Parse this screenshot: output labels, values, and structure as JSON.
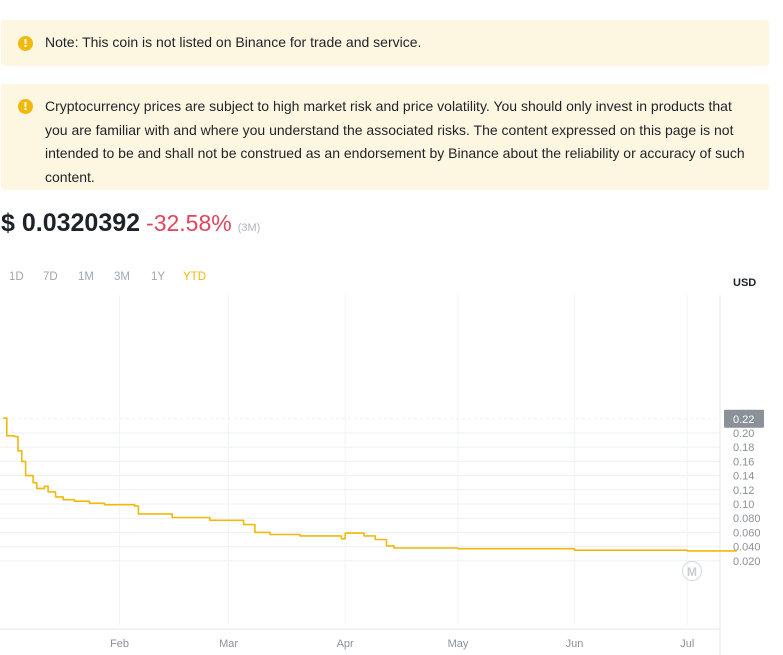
{
  "notices": [
    {
      "text": "Note: This coin is not listed on Binance for trade and service."
    },
    {
      "text": "Cryptocurrency prices are subject to high market risk and price volatility. You should only invest in products that you are familiar with and where you understand the associated risks. The content expressed on this page is not intended to be and shall not be construed as an endorsement by Binance about the reliability or accuracy of such content."
    }
  ],
  "warning_icon": "!",
  "price": {
    "value": "$ 0.0320392",
    "change": "-32.58%",
    "period": "(3M)"
  },
  "ranges": [
    "1D",
    "7D",
    "1M",
    "3M",
    "1Y",
    "YTD"
  ],
  "active_range": "YTD",
  "currency": "USD",
  "colors": {
    "line": "#f0b90b",
    "negative": "#e2445c",
    "notice_bg": "#fdf6e0",
    "active_tab": "#f0b90b"
  },
  "chart_data": {
    "type": "line",
    "title": "",
    "xlabel": "",
    "ylabel": "",
    "ylim": [
      0.0,
      0.226
    ],
    "x_labels": [
      "Feb",
      "Mar",
      "Apr",
      "May",
      "Jun",
      "Jul"
    ],
    "x_label_dates": [
      "2024-02-01",
      "2024-03-01",
      "2024-04-01",
      "2024-05-01",
      "2024-06-01",
      "2024-07-01"
    ],
    "y_ticks": [
      "0.22",
      "0.20",
      "0.18",
      "0.16",
      "0.14",
      "0.12",
      "0.10",
      "0.080",
      "0.060",
      "0.040",
      "0.020"
    ],
    "y_tick_values": [
      0.22,
      0.2,
      0.18,
      0.16,
      0.14,
      0.12,
      0.1,
      0.08,
      0.06,
      0.04,
      0.02
    ],
    "highlighted_tick": "0.22",
    "grid": true,
    "series": [
      {
        "x": [
          "2024-01-01",
          "2024-01-02",
          "2024-01-04",
          "2024-01-05",
          "2024-01-06",
          "2024-01-07",
          "2024-01-09",
          "2024-01-10",
          "2024-01-12",
          "2024-01-13",
          "2024-01-15",
          "2024-01-17",
          "2024-01-20",
          "2024-01-24",
          "2024-01-28",
          "2024-02-05",
          "2024-02-06",
          "2024-02-15",
          "2024-02-25",
          "2024-03-05",
          "2024-03-08",
          "2024-03-12",
          "2024-03-20",
          "2024-03-31",
          "2024-04-01",
          "2024-04-06",
          "2024-04-09",
          "2024-04-12",
          "2024-04-14",
          "2024-05-01",
          "2024-06-01",
          "2024-07-01",
          "2024-07-12",
          "2024-07-14"
        ],
        "y": [
          0.221,
          0.196,
          0.195,
          0.175,
          0.16,
          0.14,
          0.13,
          0.122,
          0.125,
          0.117,
          0.11,
          0.106,
          0.104,
          0.101,
          0.099,
          0.097,
          0.086,
          0.081,
          0.077,
          0.071,
          0.06,
          0.057,
          0.055,
          0.051,
          0.059,
          0.055,
          0.05,
          0.041,
          0.038,
          0.037,
          0.035,
          0.034,
          0.034,
          0.033
        ]
      }
    ]
  }
}
